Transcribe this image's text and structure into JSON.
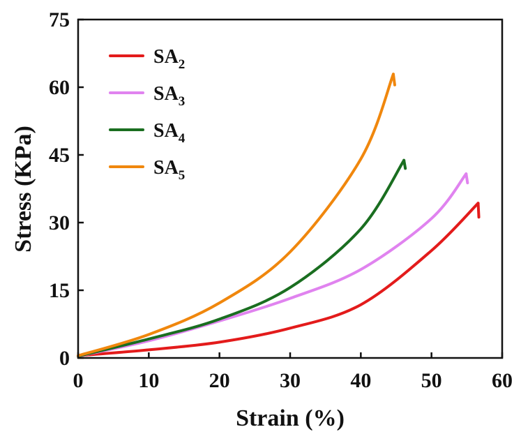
{
  "chart_data": {
    "type": "line",
    "xlabel": "Strain (%)",
    "ylabel": "Stress (KPa)",
    "xlim": [
      0,
      60
    ],
    "ylim": [
      0,
      75
    ],
    "xticks": [
      0,
      10,
      20,
      30,
      40,
      50,
      60
    ],
    "yticks": [
      0,
      15,
      30,
      45,
      60,
      75
    ],
    "legend_position": "top-left",
    "series": [
      {
        "name": "SA2",
        "label_base": "SA",
        "label_sub": "2",
        "color": "#e31b1b",
        "points": [
          [
            0,
            0.5
          ],
          [
            10,
            1.8
          ],
          [
            20,
            3.5
          ],
          [
            30,
            6.6
          ],
          [
            40,
            11.8
          ],
          [
            50,
            23.8
          ],
          [
            56.6,
            34.3
          ],
          [
            56.7,
            31.2
          ]
        ]
      },
      {
        "name": "SA3",
        "label_base": "SA",
        "label_sub": "3",
        "color": "#e083ef",
        "points": [
          [
            0,
            0.4
          ],
          [
            10,
            3.8
          ],
          [
            20,
            8.2
          ],
          [
            30,
            13.2
          ],
          [
            40,
            19.6
          ],
          [
            50,
            30.9
          ],
          [
            54.9,
            40.8
          ],
          [
            55.1,
            38.8
          ]
        ]
      },
      {
        "name": "SA4",
        "label_base": "SA",
        "label_sub": "4",
        "color": "#1a6e20",
        "points": [
          [
            0,
            0.4
          ],
          [
            10,
            4.2
          ],
          [
            20,
            8.6
          ],
          [
            30,
            15.6
          ],
          [
            40,
            28.6
          ],
          [
            46.1,
            43.8
          ],
          [
            46.3,
            42.0
          ]
        ]
      },
      {
        "name": "SA5",
        "label_base": "SA",
        "label_sub": "5",
        "color": "#f0870d",
        "points": [
          [
            0,
            0.5
          ],
          [
            10,
            5.2
          ],
          [
            20,
            12.2
          ],
          [
            30,
            23.5
          ],
          [
            40,
            44.1
          ],
          [
            44.6,
            62.9
          ],
          [
            44.8,
            60.5
          ]
        ]
      }
    ]
  }
}
